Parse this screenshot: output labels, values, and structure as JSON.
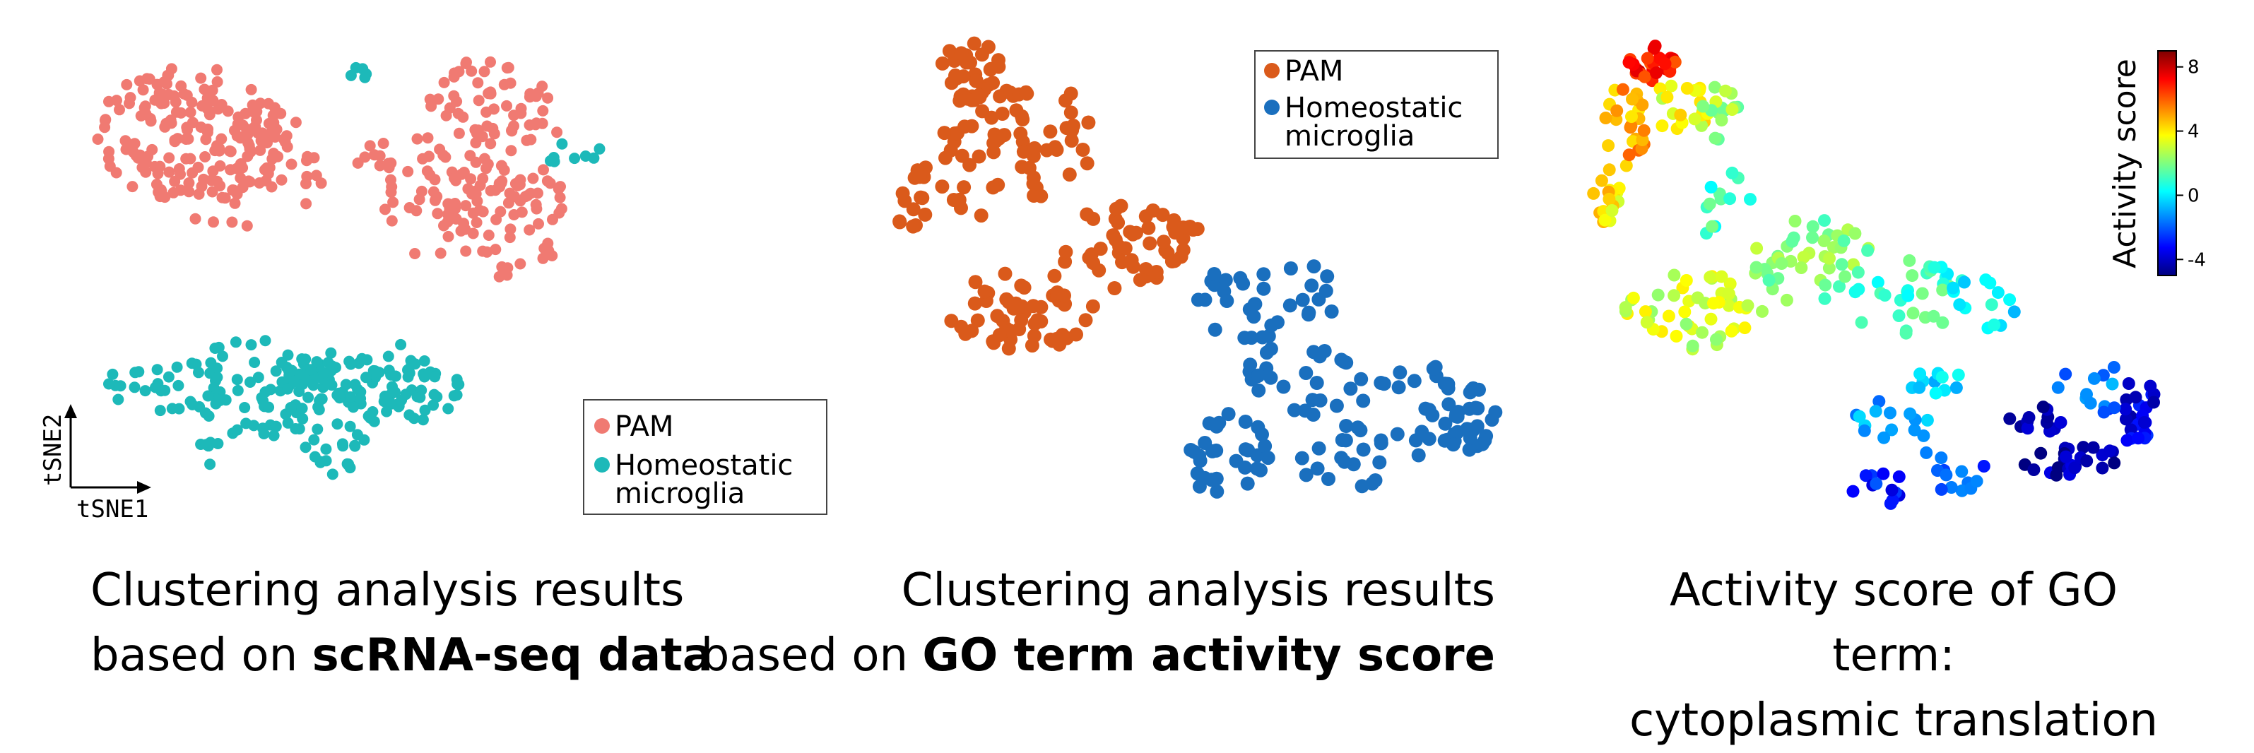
{
  "captions": {
    "left_line1": "Clustering analysis results",
    "left_line2_prefix": "based on ",
    "left_line2_bold": "scRNA-seq data",
    "mid_line1": "Clustering analysis results",
    "mid_line2_prefix": "based on ",
    "mid_line2_bold": "GO term activity score",
    "right_line1": "Activity score of GO term:",
    "right_line2": "cytoplasmic translation"
  },
  "colors": {
    "pam_panel1": "#F07A72",
    "homeostatic_panel1": "#1DB9B9",
    "pam_panel2": "#DA5A1B",
    "homeostatic_panel2": "#1A6FBE"
  },
  "chart_data": [
    {
      "type": "scatter",
      "xlabel": "tSNE1",
      "ylabel": "tSNE2",
      "legend_position": "bottom-right",
      "series": [
        {
          "name": "PAM",
          "color": "#F07A72",
          "regions": [
            {
              "cx": 270,
              "cy": 190,
              "rx": 135,
              "ry": 95,
              "n": 120
            },
            {
              "cx": 330,
              "cy": 235,
              "rx": 130,
              "ry": 90,
              "n": 70
            },
            {
              "cx": 380,
              "cy": 190,
              "rx": 50,
              "ry": 40,
              "n": 20
            },
            {
              "cx": 690,
              "cy": 195,
              "rx": 100,
              "ry": 115,
              "n": 100
            },
            {
              "cx": 720,
              "cy": 310,
              "rx": 90,
              "ry": 90,
              "n": 55
            },
            {
              "cx": 600,
              "cy": 300,
              "rx": 60,
              "ry": 80,
              "n": 25
            },
            {
              "cx": 530,
              "cy": 220,
              "rx": 30,
              "ry": 30,
              "n": 10
            }
          ]
        },
        {
          "name": "Homeostatic microglia",
          "color": "#1DB9B9",
          "regions": [
            {
              "cx": 360,
              "cy": 550,
              "rx": 110,
              "ry": 70,
              "n": 70
            },
            {
              "cx": 480,
              "cy": 560,
              "rx": 90,
              "ry": 75,
              "n": 60
            },
            {
              "cx": 540,
              "cy": 540,
              "rx": 80,
              "ry": 60,
              "n": 40
            },
            {
              "cx": 600,
              "cy": 555,
              "rx": 60,
              "ry": 40,
              "n": 20
            },
            {
              "cx": 230,
              "cy": 555,
              "rx": 50,
              "ry": 40,
              "n": 15
            },
            {
              "cx": 175,
              "cy": 545,
              "rx": 25,
              "ry": 25,
              "n": 6
            },
            {
              "cx": 290,
              "cy": 640,
              "rx": 25,
              "ry": 25,
              "n": 6
            },
            {
              "cx": 450,
              "cy": 650,
              "rx": 50,
              "ry": 35,
              "n": 12
            },
            {
              "cx": 810,
              "cy": 220,
              "rx": 45,
              "ry": 25,
              "n": 8
            },
            {
              "cx": 510,
              "cy": 100,
              "rx": 25,
              "ry": 15,
              "n": 5
            }
          ]
        }
      ]
    },
    {
      "type": "scatter",
      "legend_position": "top-right",
      "series": [
        {
          "name": "PAM",
          "color": "#DA5A1B",
          "regions": [
            {
              "cx": 1375,
              "cy": 100,
              "rx": 45,
              "ry": 40,
              "n": 30
            },
            {
              "cx": 1410,
              "cy": 215,
              "rx": 95,
              "ry": 100,
              "n": 60
            },
            {
              "cx": 1300,
              "cy": 280,
              "rx": 40,
              "ry": 50,
              "n": 15
            },
            {
              "cx": 1445,
              "cy": 440,
              "rx": 110,
              "ry": 55,
              "n": 55
            },
            {
              "cx": 1590,
              "cy": 350,
              "rx": 90,
              "ry": 60,
              "n": 40
            },
            {
              "cx": 1650,
              "cy": 330,
              "rx": 50,
              "ry": 35,
              "n": 12
            },
            {
              "cx": 1520,
              "cy": 190,
              "rx": 30,
              "ry": 60,
              "n": 12
            }
          ]
        },
        {
          "name": "Homeostatic microglia",
          "color": "#1A6FBE",
          "regions": [
            {
              "cx": 1790,
              "cy": 420,
              "rx": 100,
              "ry": 70,
              "n": 35
            },
            {
              "cx": 1840,
              "cy": 540,
              "rx": 80,
              "ry": 60,
              "n": 25
            },
            {
              "cx": 1730,
              "cy": 640,
              "rx": 70,
              "ry": 60,
              "n": 30
            },
            {
              "cx": 1990,
              "cy": 580,
              "rx": 90,
              "ry": 70,
              "n": 35
            },
            {
              "cx": 2080,
              "cy": 590,
              "rx": 40,
              "ry": 60,
              "n": 25
            },
            {
              "cx": 1900,
              "cy": 660,
              "rx": 60,
              "ry": 40,
              "n": 15
            }
          ]
        }
      ]
    },
    {
      "type": "scatter",
      "colorbar": {
        "label": "Activity score",
        "ticks": [
          8,
          4,
          0,
          -4
        ],
        "min": -5,
        "max": 9,
        "colormap": "jet"
      },
      "regions": [
        {
          "cx": 2340,
          "cy": 90,
          "rx": 35,
          "ry": 25,
          "n": 25,
          "score": 7
        },
        {
          "cx": 2300,
          "cy": 180,
          "rx": 30,
          "ry": 60,
          "n": 25,
          "score": 5
        },
        {
          "cx": 2275,
          "cy": 280,
          "rx": 25,
          "ry": 45,
          "n": 18,
          "score": 4
        },
        {
          "cx": 2380,
          "cy": 150,
          "rx": 40,
          "ry": 40,
          "n": 20,
          "score": 3.5
        },
        {
          "cx": 2430,
          "cy": 160,
          "rx": 30,
          "ry": 40,
          "n": 15,
          "score": 2.5
        },
        {
          "cx": 2400,
          "cy": 440,
          "rx": 100,
          "ry": 55,
          "n": 50,
          "score": 3
        },
        {
          "cx": 2440,
          "cy": 290,
          "rx": 40,
          "ry": 60,
          "n": 12,
          "score": 1
        },
        {
          "cx": 2560,
          "cy": 370,
          "rx": 90,
          "ry": 60,
          "n": 45,
          "score": 2
        },
        {
          "cx": 2690,
          "cy": 420,
          "rx": 80,
          "ry": 60,
          "n": 30,
          "score": 1
        },
        {
          "cx": 2800,
          "cy": 430,
          "rx": 60,
          "ry": 45,
          "n": 15,
          "score": 0
        },
        {
          "cx": 2740,
          "cy": 530,
          "rx": 40,
          "ry": 40,
          "n": 12,
          "score": 0
        },
        {
          "cx": 2680,
          "cy": 610,
          "rx": 60,
          "ry": 50,
          "n": 15,
          "score": -1
        },
        {
          "cx": 2660,
          "cy": 690,
          "rx": 40,
          "ry": 25,
          "n": 12,
          "score": -3
        },
        {
          "cx": 2780,
          "cy": 670,
          "rx": 40,
          "ry": 40,
          "n": 12,
          "score": -2
        },
        {
          "cx": 2930,
          "cy": 650,
          "rx": 70,
          "ry": 25,
          "n": 25,
          "score": -4.5
        },
        {
          "cx": 3020,
          "cy": 580,
          "rx": 40,
          "ry": 45,
          "n": 25,
          "score": -3.5
        },
        {
          "cx": 2960,
          "cy": 550,
          "rx": 50,
          "ry": 40,
          "n": 12,
          "score": -1.5
        },
        {
          "cx": 2880,
          "cy": 590,
          "rx": 40,
          "ry": 25,
          "n": 12,
          "score": -4
        }
      ]
    }
  ]
}
